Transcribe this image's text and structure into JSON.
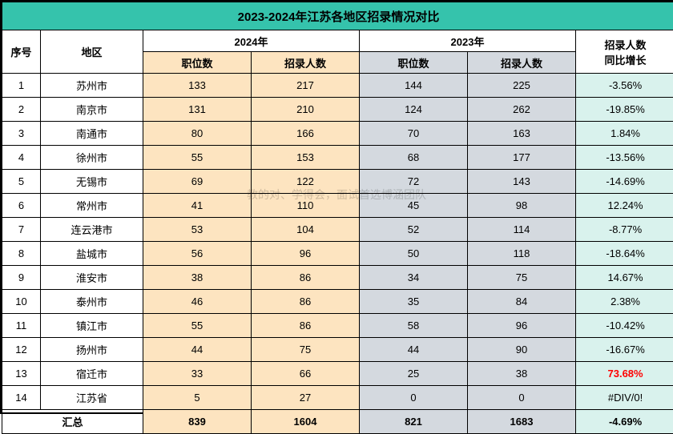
{
  "colors": {
    "title_bg": "#35c3ac",
    "y2024_bg": "#fde4c0",
    "y2023_bg": "#d4d9df",
    "rate_bg": "#d9f2ed",
    "red": "#ff0000"
  },
  "title": "2023-2024年江苏各地区招录情况对比",
  "watermark": "教的对、学得会，面试首选博涵团队",
  "headers": {
    "seq": "序号",
    "region": "地区",
    "y2024": "2024年",
    "y2023": "2023年",
    "rate": "招录人数\n同比增长",
    "rate_line1": "招录人数",
    "rate_line2": "同比增长",
    "positions": "职位数",
    "people": "招录人数"
  },
  "rows": [
    {
      "seq": "1",
      "region": "苏州市",
      "p2024": "133",
      "n2024": "217",
      "p2023": "144",
      "n2023": "225",
      "rate": "-3.56%",
      "red": false
    },
    {
      "seq": "2",
      "region": "南京市",
      "p2024": "131",
      "n2024": "210",
      "p2023": "124",
      "n2023": "262",
      "rate": "-19.85%",
      "red": false
    },
    {
      "seq": "3",
      "region": "南通市",
      "p2024": "80",
      "n2024": "166",
      "p2023": "70",
      "n2023": "163",
      "rate": "1.84%",
      "red": false
    },
    {
      "seq": "4",
      "region": "徐州市",
      "p2024": "55",
      "n2024": "153",
      "p2023": "68",
      "n2023": "177",
      "rate": "-13.56%",
      "red": false
    },
    {
      "seq": "5",
      "region": "无锡市",
      "p2024": "69",
      "n2024": "122",
      "p2023": "72",
      "n2023": "143",
      "rate": "-14.69%",
      "red": false
    },
    {
      "seq": "6",
      "region": "常州市",
      "p2024": "41",
      "n2024": "110",
      "p2023": "45",
      "n2023": "98",
      "rate": "12.24%",
      "red": false
    },
    {
      "seq": "7",
      "region": "连云港市",
      "p2024": "53",
      "n2024": "104",
      "p2023": "52",
      "n2023": "114",
      "rate": "-8.77%",
      "red": false
    },
    {
      "seq": "8",
      "region": "盐城市",
      "p2024": "56",
      "n2024": "96",
      "p2023": "50",
      "n2023": "118",
      "rate": "-18.64%",
      "red": false
    },
    {
      "seq": "9",
      "region": "淮安市",
      "p2024": "38",
      "n2024": "86",
      "p2023": "34",
      "n2023": "75",
      "rate": "14.67%",
      "red": false
    },
    {
      "seq": "10",
      "region": "泰州市",
      "p2024": "46",
      "n2024": "86",
      "p2023": "35",
      "n2023": "84",
      "rate": "2.38%",
      "red": false
    },
    {
      "seq": "11",
      "region": "镇江市",
      "p2024": "55",
      "n2024": "86",
      "p2023": "58",
      "n2023": "96",
      "rate": "-10.42%",
      "red": false
    },
    {
      "seq": "12",
      "region": "扬州市",
      "p2024": "44",
      "n2024": "75",
      "p2023": "44",
      "n2023": "90",
      "rate": "-16.67%",
      "red": false
    },
    {
      "seq": "13",
      "region": "宿迁市",
      "p2024": "33",
      "n2024": "66",
      "p2023": "25",
      "n2023": "38",
      "rate": "73.68%",
      "red": true
    },
    {
      "seq": "14",
      "region": "江苏省",
      "p2024": "5",
      "n2024": "27",
      "p2023": "0",
      "n2023": "0",
      "rate": "#DIV/0!",
      "red": false
    }
  ],
  "summary": {
    "label": "汇总",
    "p2024": "839",
    "n2024": "1604",
    "p2023": "821",
    "n2023": "1683",
    "rate": "-4.69%"
  }
}
